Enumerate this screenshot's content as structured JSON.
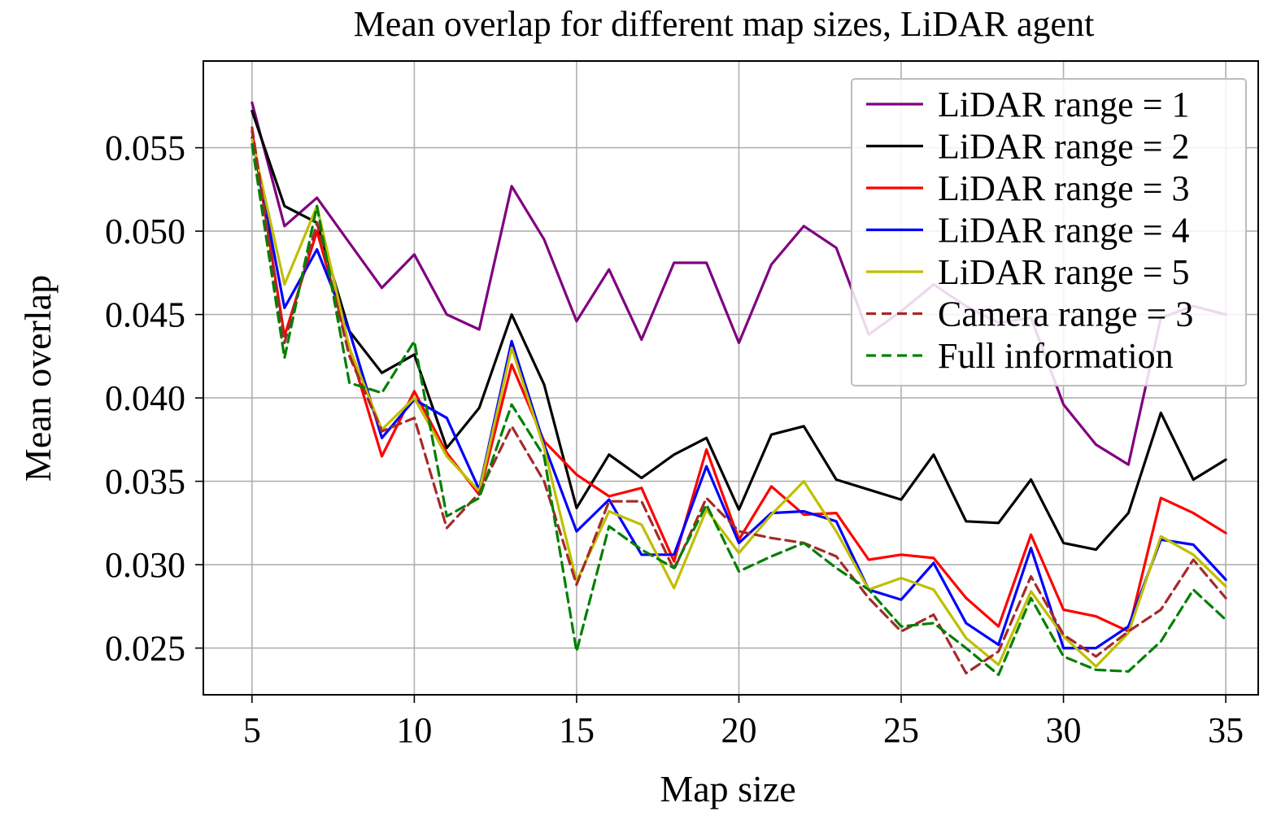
{
  "chart_data": {
    "type": "line",
    "title": "Mean overlap for different map sizes, LiDAR agent",
    "xlabel": "Map size",
    "ylabel": "Mean overlap",
    "xlim": [
      3.5,
      36.0
    ],
    "ylim": [
      0.0222,
      0.0602
    ],
    "xticks": [
      5,
      10,
      15,
      20,
      25,
      30,
      35
    ],
    "yticks": [
      0.025,
      0.03,
      0.035,
      0.04,
      0.045,
      0.05,
      0.055
    ],
    "ytick_labels": [
      "0.025",
      "0.030",
      "0.035",
      "0.040",
      "0.045",
      "0.050",
      "0.055"
    ],
    "grid": true,
    "legend_position": "top-right",
    "x": [
      5,
      6,
      7,
      8,
      9,
      10,
      11,
      12,
      13,
      14,
      15,
      16,
      17,
      18,
      19,
      20,
      21,
      22,
      23,
      24,
      25,
      26,
      27,
      28,
      29,
      30,
      31,
      32,
      33,
      34,
      35
    ],
    "series": [
      {
        "name": "LiDAR range = 1",
        "color": "#800080",
        "dash": "solid",
        "values": [
          0.0577,
          0.0503,
          0.052,
          0.0493,
          0.0466,
          0.0486,
          0.045,
          0.0441,
          0.0527,
          0.0495,
          0.0446,
          0.0477,
          0.0435,
          0.0481,
          0.0481,
          0.0433,
          0.048,
          0.0503,
          0.049,
          0.0438,
          0.0452,
          0.0468,
          0.0455,
          0.0445,
          0.0448,
          0.0396,
          0.0372,
          0.036,
          0.0448,
          0.0455,
          0.045
        ]
      },
      {
        "name": "LiDAR range = 2",
        "color": "#000000",
        "dash": "solid",
        "values": [
          0.0572,
          0.0515,
          0.0505,
          0.044,
          0.0415,
          0.0426,
          0.037,
          0.0394,
          0.045,
          0.0408,
          0.0334,
          0.0366,
          0.0352,
          0.0366,
          0.0376,
          0.0333,
          0.0378,
          0.0383,
          0.0351,
          0.0345,
          0.0339,
          0.0366,
          0.0326,
          0.0325,
          0.0351,
          0.0313,
          0.0309,
          0.0331,
          0.0391,
          0.0351,
          0.0363
        ]
      },
      {
        "name": "LiDAR range = 3",
        "color": "#ff0000",
        "dash": "solid",
        "values": [
          0.056,
          0.0437,
          0.05,
          0.043,
          0.0365,
          0.0404,
          0.0367,
          0.0342,
          0.042,
          0.0374,
          0.0354,
          0.0341,
          0.0346,
          0.0302,
          0.0369,
          0.0315,
          0.0347,
          0.033,
          0.0331,
          0.0303,
          0.0306,
          0.0304,
          0.028,
          0.0263,
          0.0318,
          0.0273,
          0.0269,
          0.026,
          0.034,
          0.0331,
          0.0319
        ]
      },
      {
        "name": "LiDAR range = 4",
        "color": "#0000ff",
        "dash": "solid",
        "values": [
          0.0556,
          0.0454,
          0.0489,
          0.044,
          0.0376,
          0.0399,
          0.0388,
          0.0345,
          0.0434,
          0.0372,
          0.032,
          0.0339,
          0.0306,
          0.0306,
          0.0359,
          0.0313,
          0.0331,
          0.0332,
          0.0326,
          0.0285,
          0.0279,
          0.0301,
          0.0265,
          0.0252,
          0.031,
          0.025,
          0.025,
          0.0263,
          0.0315,
          0.0312,
          0.0291
        ]
      },
      {
        "name": "LiDAR range = 5",
        "color": "#bfbf00",
        "dash": "solid",
        "values": [
          0.0555,
          0.0468,
          0.0515,
          0.043,
          0.0381,
          0.04,
          0.0365,
          0.0344,
          0.043,
          0.037,
          0.029,
          0.0332,
          0.0324,
          0.0286,
          0.0333,
          0.0307,
          0.033,
          0.035,
          0.032,
          0.0285,
          0.0292,
          0.0285,
          0.0256,
          0.024,
          0.0284,
          0.0257,
          0.0239,
          0.0259,
          0.0317,
          0.0306,
          0.0287
        ]
      },
      {
        "name": "Camera range = 3",
        "color": "#a52a2a",
        "dash": "dashed",
        "values": [
          0.0562,
          0.0433,
          0.0505,
          0.0425,
          0.038,
          0.0388,
          0.0322,
          0.0343,
          0.0383,
          0.035,
          0.0288,
          0.0338,
          0.0338,
          0.0297,
          0.034,
          0.032,
          0.0316,
          0.0313,
          0.0305,
          0.028,
          0.026,
          0.027,
          0.0235,
          0.0248,
          0.0293,
          0.0258,
          0.0245,
          0.026,
          0.0273,
          0.0303,
          0.028
        ]
      },
      {
        "name": "Full information",
        "color": "#008000",
        "dash": "dashed",
        "values": [
          0.0552,
          0.0424,
          0.0515,
          0.0409,
          0.0403,
          0.0434,
          0.0329,
          0.034,
          0.0396,
          0.0365,
          0.0248,
          0.0323,
          0.0309,
          0.0298,
          0.0336,
          0.0296,
          0.0305,
          0.0313,
          0.0298,
          0.0285,
          0.0263,
          0.0265,
          0.025,
          0.0234,
          0.028,
          0.0245,
          0.0237,
          0.0236,
          0.0254,
          0.0285,
          0.0267
        ]
      }
    ]
  }
}
